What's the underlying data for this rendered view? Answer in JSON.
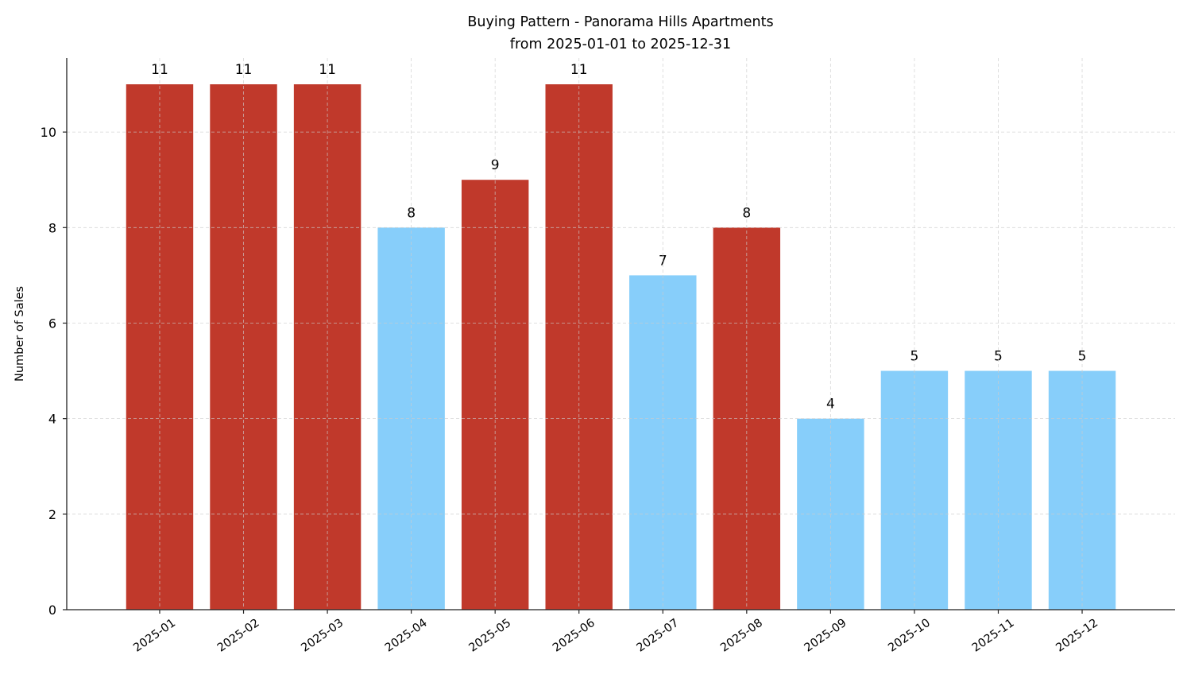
{
  "chart_data": {
    "type": "bar",
    "title": "Buying Pattern - Panorama Hills Apartments",
    "subtitle": "from 2025-01-01 to 2025-12-31",
    "xlabel": "",
    "ylabel": "Number of Sales",
    "categories": [
      "2025-01",
      "2025-02",
      "2025-03",
      "2025-04",
      "2025-05",
      "2025-06",
      "2025-07",
      "2025-08",
      "2025-09",
      "2025-10",
      "2025-11",
      "2025-12"
    ],
    "values": [
      11,
      11,
      11,
      8,
      9,
      11,
      7,
      8,
      4,
      5,
      5,
      5
    ],
    "bar_colors": [
      "#c0392b",
      "#c0392b",
      "#c0392b",
      "#87cefa",
      "#c0392b",
      "#c0392b",
      "#87cefa",
      "#c0392b",
      "#87cefa",
      "#87cefa",
      "#87cefa",
      "#87cefa"
    ],
    "data_labels": [
      "11",
      "11",
      "11",
      "8",
      "9",
      "11",
      "7",
      "8",
      "4",
      "5",
      "5",
      "5"
    ],
    "yticks": [
      "0",
      "2",
      "4",
      "6",
      "8",
      "10"
    ],
    "ylim": [
      0,
      11.55
    ],
    "grid": true,
    "legend": "none"
  }
}
